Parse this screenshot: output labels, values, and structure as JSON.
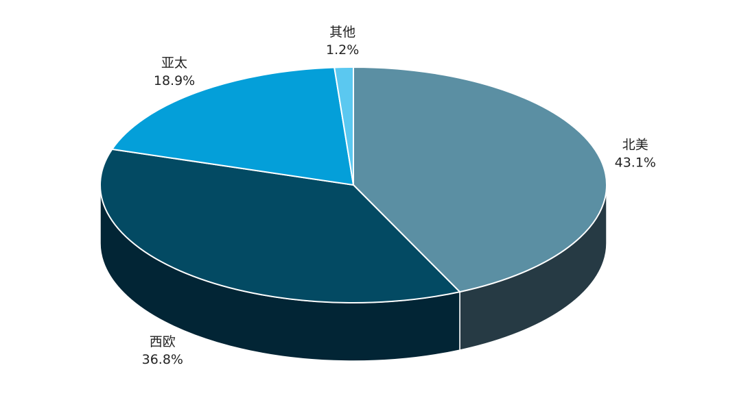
{
  "chart_data": {
    "type": "pie",
    "categories": [
      "北美",
      "西欧",
      "亚太",
      "其他"
    ],
    "values": [
      43.1,
      36.8,
      18.9,
      1.2
    ],
    "value_labels": [
      "43.1%",
      "36.8%",
      "18.9%",
      "1.2%"
    ],
    "colors": [
      "#5b8fa3",
      "#034a63",
      "#049fd9",
      "#5bc8f0"
    ],
    "side_colors": [
      "#263a44",
      "#022535",
      "#03709a",
      "#3a9ec4"
    ]
  }
}
